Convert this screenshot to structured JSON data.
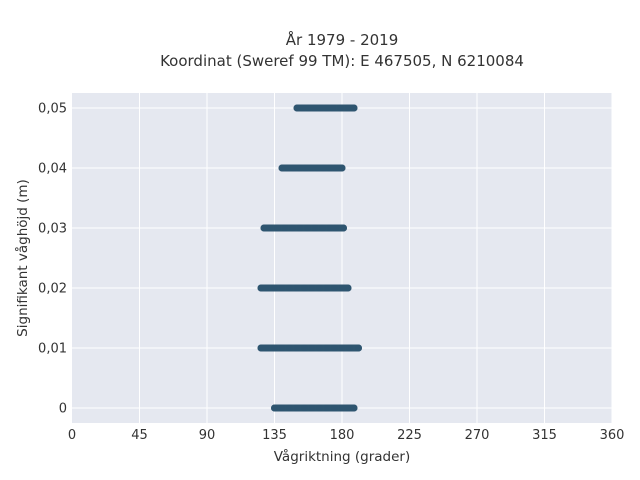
{
  "chart_data": {
    "type": "scatter",
    "title_line1": "År 1979 - 2019",
    "title_line2": "Koordinat (Sweref 99 TM): E 467505, N 6210084",
    "xlabel": "Vågriktning (grader)",
    "ylabel": "Signifikant våghöjd (m)",
    "xlim": [
      0,
      360
    ],
    "ylim": [
      -0.0025,
      0.0525
    ],
    "xticks": [
      0,
      45,
      90,
      135,
      180,
      225,
      270,
      315,
      360
    ],
    "xtick_labels": [
      "0",
      "45",
      "90",
      "135",
      "180",
      "225",
      "270",
      "315",
      "360"
    ],
    "yticks": [
      0,
      0.01,
      0.02,
      0.03,
      0.04,
      0.05
    ],
    "ytick_labels": [
      "0",
      "0,01",
      "0,02",
      "0,03",
      "0,04",
      "0,05"
    ],
    "grid": true,
    "marker_color": "#2f5670",
    "background_color": "#e5e8f0",
    "points": [
      {
        "x": 135,
        "y": 0
      },
      {
        "x": 140,
        "y": 0
      },
      {
        "x": 145,
        "y": 0
      },
      {
        "x": 150,
        "y": 0
      },
      {
        "x": 155,
        "y": 0
      },
      {
        "x": 160,
        "y": 0
      },
      {
        "x": 165,
        "y": 0
      },
      {
        "x": 170,
        "y": 0
      },
      {
        "x": 175,
        "y": 0
      },
      {
        "x": 180,
        "y": 0
      },
      {
        "x": 184,
        "y": 0
      },
      {
        "x": 188,
        "y": 0
      },
      {
        "x": 126,
        "y": 0.01
      },
      {
        "x": 130,
        "y": 0.01
      },
      {
        "x": 135,
        "y": 0.01
      },
      {
        "x": 140,
        "y": 0.01
      },
      {
        "x": 145,
        "y": 0.01
      },
      {
        "x": 150,
        "y": 0.01
      },
      {
        "x": 155,
        "y": 0.01
      },
      {
        "x": 160,
        "y": 0.01
      },
      {
        "x": 165,
        "y": 0.01
      },
      {
        "x": 170,
        "y": 0.01
      },
      {
        "x": 175,
        "y": 0.01
      },
      {
        "x": 180,
        "y": 0.01
      },
      {
        "x": 185,
        "y": 0.01
      },
      {
        "x": 191,
        "y": 0.01
      },
      {
        "x": 126,
        "y": 0.02
      },
      {
        "x": 130,
        "y": 0.02
      },
      {
        "x": 135,
        "y": 0.02
      },
      {
        "x": 140,
        "y": 0.02
      },
      {
        "x": 145,
        "y": 0.02
      },
      {
        "x": 150,
        "y": 0.02
      },
      {
        "x": 155,
        "y": 0.02
      },
      {
        "x": 160,
        "y": 0.02
      },
      {
        "x": 165,
        "y": 0.02
      },
      {
        "x": 170,
        "y": 0.02
      },
      {
        "x": 175,
        "y": 0.02
      },
      {
        "x": 180,
        "y": 0.02
      },
      {
        "x": 184,
        "y": 0.02
      },
      {
        "x": 128,
        "y": 0.03
      },
      {
        "x": 132,
        "y": 0.03
      },
      {
        "x": 137,
        "y": 0.03
      },
      {
        "x": 142,
        "y": 0.03
      },
      {
        "x": 147,
        "y": 0.03
      },
      {
        "x": 152,
        "y": 0.03
      },
      {
        "x": 157,
        "y": 0.03
      },
      {
        "x": 162,
        "y": 0.03
      },
      {
        "x": 167,
        "y": 0.03
      },
      {
        "x": 172,
        "y": 0.03
      },
      {
        "x": 176,
        "y": 0.03
      },
      {
        "x": 181,
        "y": 0.03
      },
      {
        "x": 140,
        "y": 0.04
      },
      {
        "x": 144,
        "y": 0.04
      },
      {
        "x": 148,
        "y": 0.04
      },
      {
        "x": 152,
        "y": 0.04
      },
      {
        "x": 156,
        "y": 0.04
      },
      {
        "x": 160,
        "y": 0.04
      },
      {
        "x": 164,
        "y": 0.04
      },
      {
        "x": 168,
        "y": 0.04
      },
      {
        "x": 172,
        "y": 0.04
      },
      {
        "x": 176,
        "y": 0.04
      },
      {
        "x": 180,
        "y": 0.04
      },
      {
        "x": 150,
        "y": 0.05
      },
      {
        "x": 154,
        "y": 0.05
      },
      {
        "x": 158,
        "y": 0.05
      },
      {
        "x": 162,
        "y": 0.05
      },
      {
        "x": 166,
        "y": 0.05
      },
      {
        "x": 170,
        "y": 0.05
      },
      {
        "x": 174,
        "y": 0.05
      },
      {
        "x": 179,
        "y": 0.05
      },
      {
        "x": 184,
        "y": 0.05
      },
      {
        "x": 188,
        "y": 0.05
      }
    ]
  }
}
